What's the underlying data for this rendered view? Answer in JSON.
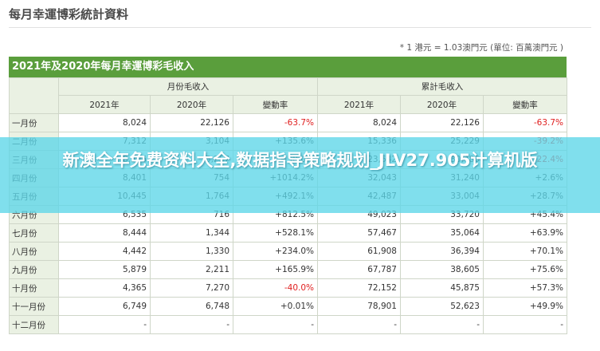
{
  "page": {
    "title": "每月幸運博彩統計資料",
    "note": "* 1 港元 = 1.03澳門元 (單位: 百萬澳門元 )"
  },
  "table": {
    "title": "2021年及2020年每月幸運博彩毛收入",
    "group_headers": [
      "月份毛收入",
      "累計毛收入"
    ],
    "column_headers": [
      "2021年",
      "2020年",
      "變動率",
      "2021年",
      "2020年",
      "變動率"
    ],
    "rows": [
      {
        "month": "一月份",
        "m2021": "8,024",
        "m2020": "22,126",
        "mchange": "-63.7%",
        "c2021": "8,024",
        "c2020": "22,126",
        "cchange": "-63.7%"
      },
      {
        "month": "二月份",
        "m2021": "7,312",
        "m2020": "3,104",
        "mchange": "+135.6%",
        "c2021": "15,336",
        "c2020": "25,229",
        "cchange": "-39.2%"
      },
      {
        "month": "三月份",
        "m2021": "8,306",
        "m2020": "5,257",
        "mchange": "+58.0%",
        "c2021": "23,642",
        "c2020": "30,486",
        "cchange": "-22.4%"
      },
      {
        "month": "四月份",
        "m2021": "8,401",
        "m2020": "754",
        "mchange": "+1014.2%",
        "c2021": "32,043",
        "c2020": "31,240",
        "cchange": "+2.6%"
      },
      {
        "month": "五月份",
        "m2021": "10,445",
        "m2020": "1,764",
        "mchange": "+492.1%",
        "c2021": "42,487",
        "c2020": "33,004",
        "cchange": "+28.7%"
      },
      {
        "month": "六月份",
        "m2021": "6,535",
        "m2020": "716",
        "mchange": "+812.5%",
        "c2021": "49,023",
        "c2020": "33,720",
        "cchange": "+45.4%"
      },
      {
        "month": "七月份",
        "m2021": "8,444",
        "m2020": "1,344",
        "mchange": "+528.1%",
        "c2021": "57,467",
        "c2020": "35,064",
        "cchange": "+63.9%"
      },
      {
        "month": "八月份",
        "m2021": "4,442",
        "m2020": "1,330",
        "mchange": "+234.0%",
        "c2021": "61,908",
        "c2020": "36,394",
        "cchange": "+70.1%"
      },
      {
        "month": "九月份",
        "m2021": "5,879",
        "m2020": "2,211",
        "mchange": "+165.9%",
        "c2021": "67,787",
        "c2020": "38,605",
        "cchange": "+75.6%"
      },
      {
        "month": "十月份",
        "m2021": "4,365",
        "m2020": "7,270",
        "mchange": "-40.0%",
        "c2021": "72,152",
        "c2020": "45,875",
        "cchange": "+57.3%"
      },
      {
        "month": "十一月份",
        "m2021": "6,749",
        "m2020": "6,748",
        "mchange": "+0.01%",
        "c2021": "78,901",
        "c2020": "52,623",
        "cchange": "+49.9%"
      },
      {
        "month": "十二月份",
        "m2021": "-",
        "m2020": "-",
        "mchange": "-",
        "c2021": "-",
        "c2020": "-",
        "cchange": "-"
      }
    ]
  },
  "overlay": {
    "text": "新澳全年免费资料大全,数据指导策略规划_JLV27.905计算机版"
  },
  "colors": {
    "header_green": "#5a9e3c",
    "header_cell_bg": "#eaf1e3",
    "negative_red": "#e02020",
    "overlay_cyan": "#5cd6e8"
  }
}
